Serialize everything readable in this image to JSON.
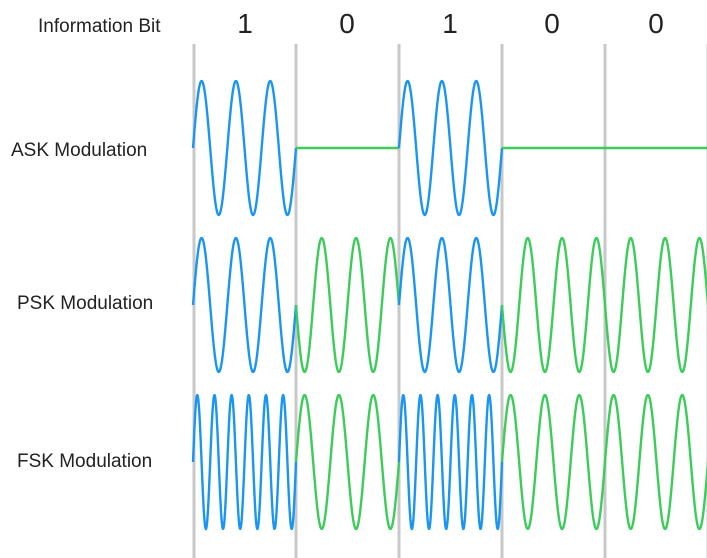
{
  "header": {
    "label": "Information Bit"
  },
  "bits": [
    "1",
    "0",
    "1",
    "0",
    "0"
  ],
  "rows": [
    {
      "key": "ask",
      "label": "ASK Modulation"
    },
    {
      "key": "psk",
      "label": "PSK Modulation"
    },
    {
      "key": "fsk",
      "label": "FSK Modulation"
    }
  ],
  "colors": {
    "bit_one": "#1a96f0",
    "bit_zero": "#3ccc5a",
    "divider": "#c8c8c8",
    "text": "#222222"
  }
}
